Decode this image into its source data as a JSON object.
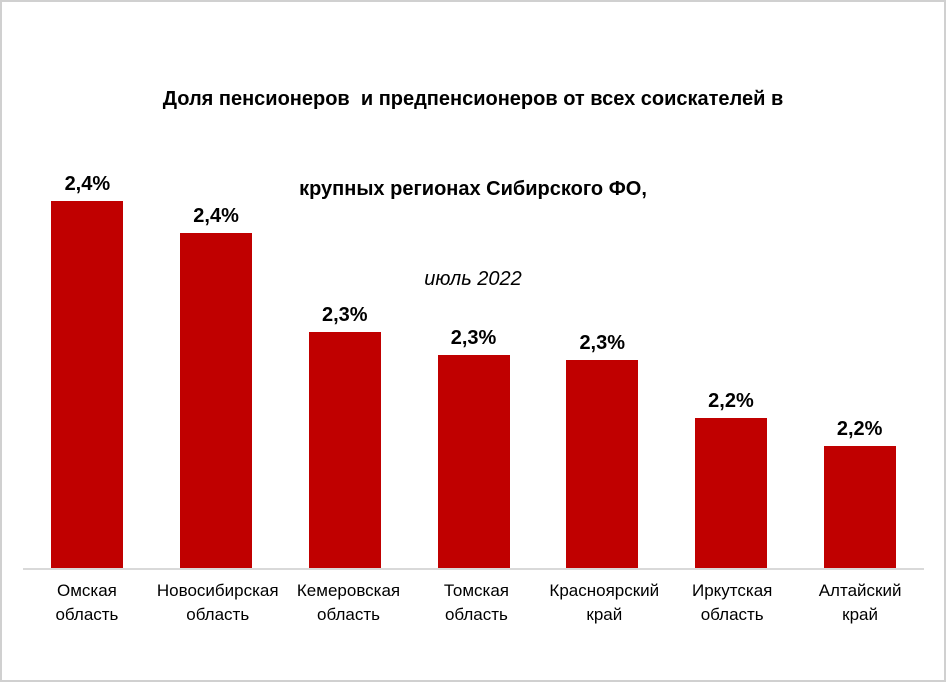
{
  "title": {
    "line1": "Доля пенсионеров  и предпенсионеров от всех соискателей в",
    "line2": "крупных регионах Сибирского ФО,",
    "subtitle": "июль 2022"
  },
  "chart_data": {
    "type": "bar",
    "title": "Доля пенсионеров и предпенсионеров от всех соискателей в крупных регионах Сибирского ФО",
    "subtitle": "июль 2022",
    "categories": [
      "Омская область",
      "Новосибирская область",
      "Кемеровская область",
      "Томская область",
      "Красноярский край",
      "Иркутская область",
      "Алтайский край"
    ],
    "value_labels": [
      "2,4%",
      "2,4%",
      "2,3%",
      "2,3%",
      "2,3%",
      "2,2%",
      "2,2%"
    ],
    "values": [
      2.4,
      2.374,
      2.293,
      2.274,
      2.27,
      2.223,
      2.2
    ],
    "unit": "%",
    "xlabel": "",
    "ylabel": "",
    "grid": false,
    "legend": false,
    "y_axis_visible": false,
    "axis": {
      "min_value": 2.1,
      "max_value": 2.4
    },
    "bar_color": "#C00000",
    "axis_line_color": "#D9D9D9",
    "text_color": "#000000",
    "background": "#FFFFFF",
    "frame_border_color": "#D0D0D0"
  }
}
